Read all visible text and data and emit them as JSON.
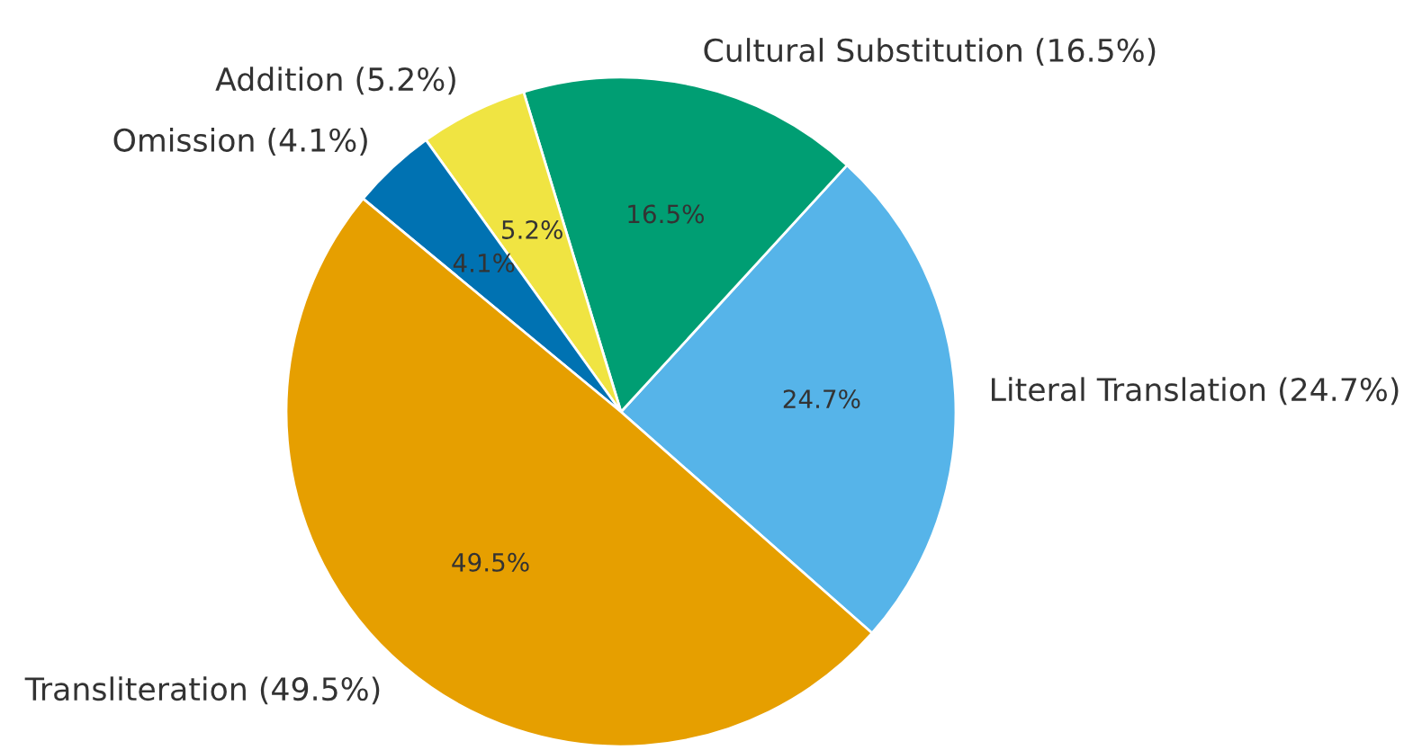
{
  "chart_data": {
    "type": "pie",
    "categories": [
      "Literal Translation (24.7%)",
      "Cultural Substitution (16.5%)",
      "Addition (5.2%)",
      "Omission (4.1%)",
      "Transliteration (49.5%)"
    ],
    "values": [
      24.7,
      16.5,
      5.2,
      4.1,
      49.5
    ],
    "value_labels": [
      "24.7%",
      "16.5%",
      "5.2%",
      "4.1%",
      "49.5%"
    ],
    "colors": [
      "#56b4e9",
      "#009e73",
      "#f0e442",
      "#0072b2",
      "#e69f00"
    ]
  }
}
